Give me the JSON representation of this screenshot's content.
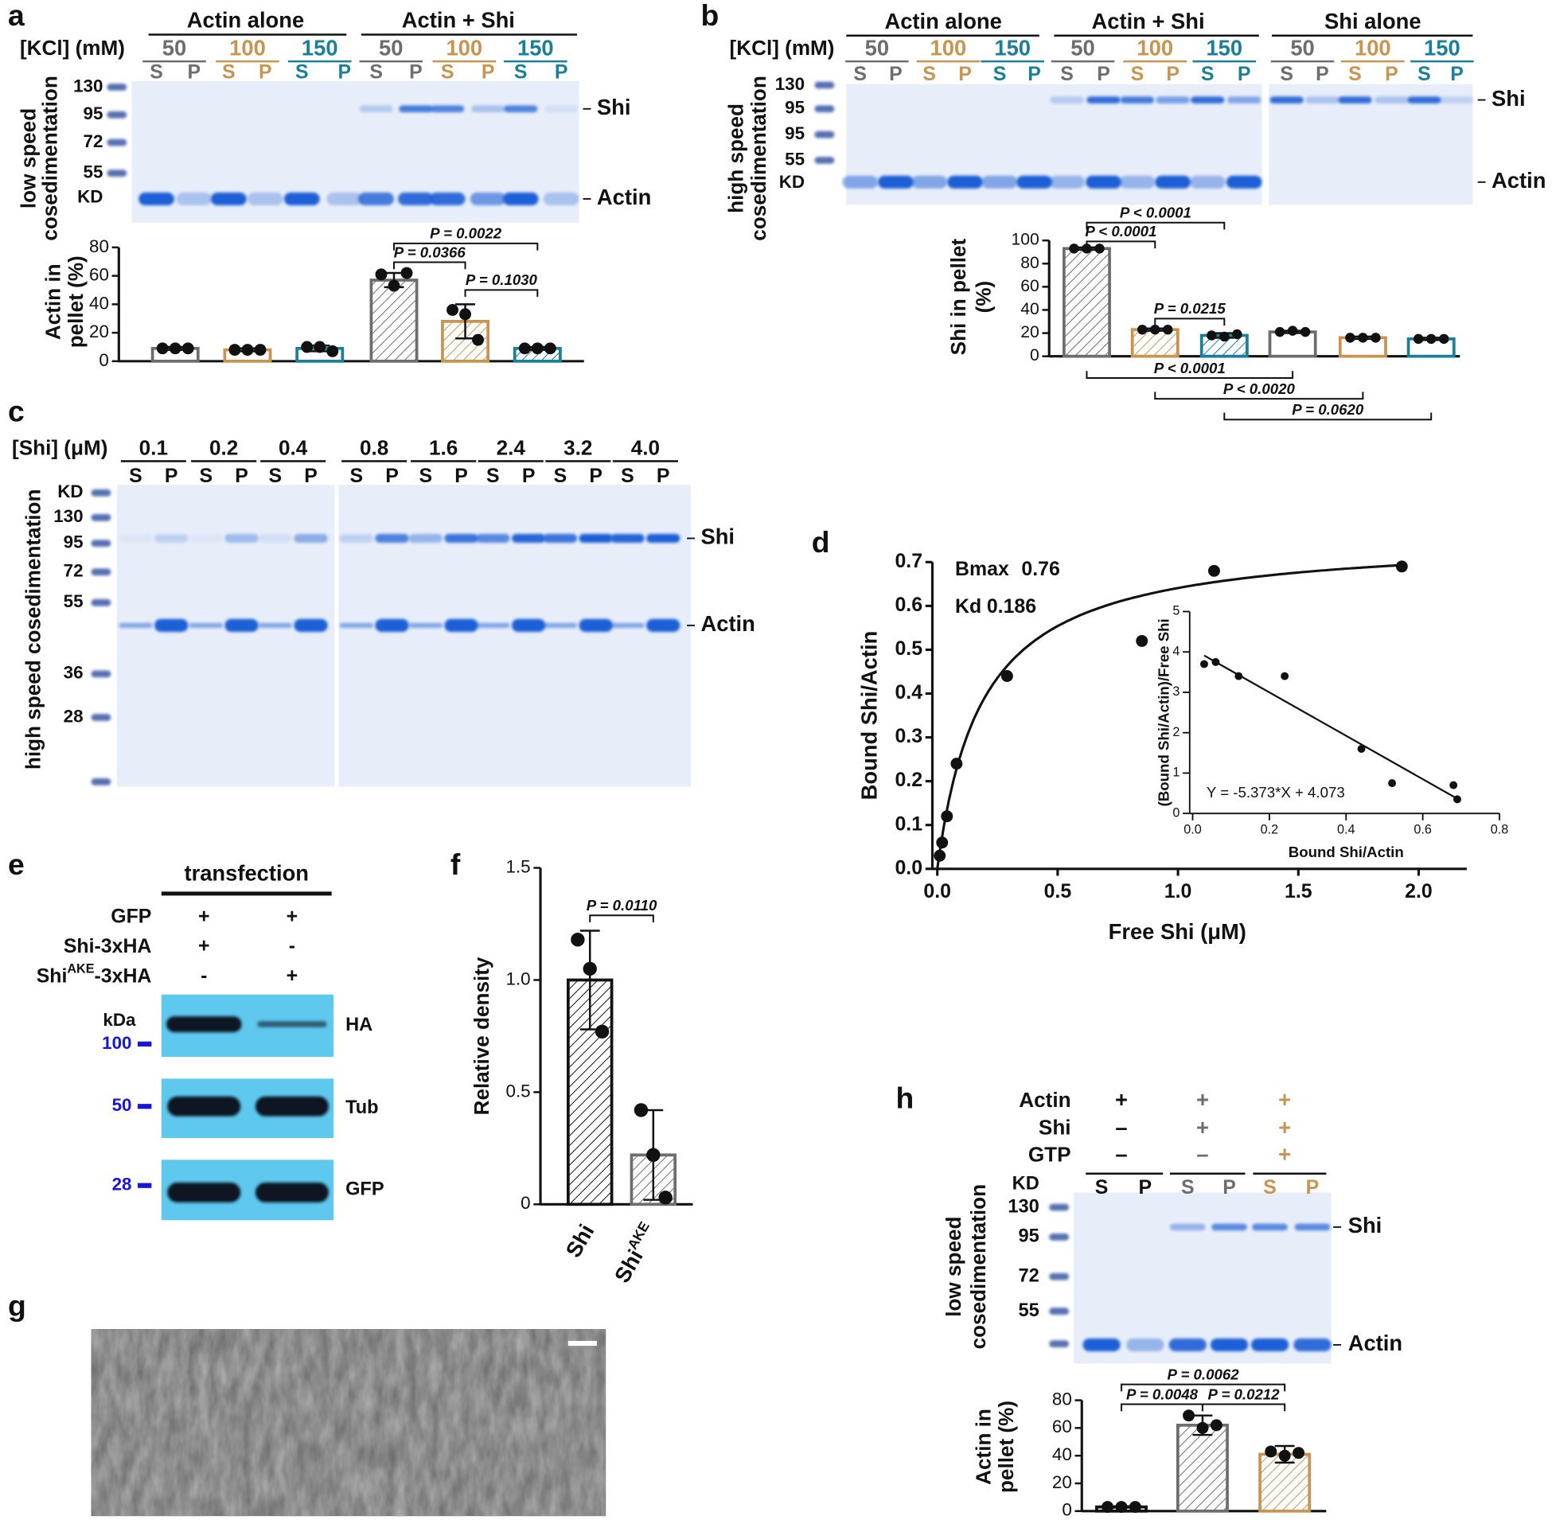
{
  "panel_labels": [
    "a",
    "b",
    "c",
    "d",
    "e",
    "f",
    "g",
    "h"
  ],
  "gels": {
    "a": {
      "groups": [
        "Actin alone",
        "Actin + Shi"
      ],
      "condition_label": "[KCl] (mM)",
      "conditions": [
        "50",
        "100",
        "150",
        "50",
        "100",
        "150"
      ],
      "colors": [
        "#6d6d6d",
        "#c89450",
        "#1a7f99",
        "#6d6d6d",
        "#c89450",
        "#1a7f99"
      ],
      "lanes": [
        "S",
        "P",
        "S",
        "P",
        "S",
        "P",
        "S",
        "P",
        "S",
        "P",
        "S",
        "P"
      ],
      "marker_unit": "KD",
      "markers": [
        "130",
        "95",
        "72",
        "55"
      ],
      "ylabel": [
        "low speed",
        "cosedimentation"
      ],
      "bands": [
        "Shi",
        "Actin"
      ]
    },
    "b": {
      "groups": [
        "Actin alone",
        "Actin + Shi",
        "Shi alone"
      ],
      "condition_label": "[KCl] (mM)",
      "conditions": [
        "50",
        "100",
        "150",
        "50",
        "100",
        "150",
        "50",
        "100",
        "150"
      ],
      "colors": [
        "#6d6d6d",
        "#c89450",
        "#1a7f99",
        "#6d6d6d",
        "#c89450",
        "#1a7f99",
        "#6d6d6d",
        "#c89450",
        "#1a7f99"
      ],
      "lanes": [
        "S",
        "P",
        "S",
        "P",
        "S",
        "P",
        "S",
        "P",
        "S",
        "P",
        "S",
        "P",
        "S",
        "P",
        "S",
        "P",
        "S",
        "P"
      ],
      "marker_unit": "KD",
      "markers": [
        "130",
        "95",
        "95",
        "55"
      ],
      "ylabel": [
        "high speed",
        "cosedimentation"
      ],
      "bands": [
        "Shi",
        "Actin"
      ]
    },
    "c": {
      "condition_label": "[Shi] (μM)",
      "conditions": [
        "0.1",
        "0.2",
        "0.4",
        "0.8",
        "1.6",
        "2.4",
        "3.2",
        "4.0"
      ],
      "lanes": [
        "S",
        "P",
        "S",
        "P",
        "S",
        "P",
        "S",
        "P",
        "S",
        "P",
        "S",
        "P",
        "S",
        "P",
        "S",
        "P"
      ],
      "marker_unit": "KD",
      "markers": [
        "130",
        "95",
        "72",
        "55",
        "36",
        "28"
      ],
      "ylabel": "high speed cosedimentation",
      "bands": [
        "Shi",
        "Actin"
      ]
    },
    "e": {
      "title": "transfection",
      "rows": [
        [
          "GFP"
        ],
        [
          "Shi-3xHA"
        ],
        [
          "Shi",
          "AKE",
          "-3xHA"
        ]
      ],
      "signs": [
        [
          "+",
          "+"
        ],
        [
          "+",
          "-"
        ],
        [
          "-",
          "+"
        ]
      ],
      "marker_unit": "kDa",
      "markers": [
        "100",
        "50",
        "28"
      ],
      "blots": [
        "HA",
        "Tub",
        "GFP"
      ]
    },
    "h": {
      "rows": [
        "Actin",
        "Shi",
        "GTP"
      ],
      "signs": [
        [
          "+",
          "+",
          "+"
        ],
        [
          "–",
          "+",
          "+"
        ],
        [
          "–",
          "–",
          "+"
        ]
      ],
      "colors": [
        "#111111",
        "#6d6d6d",
        "#c89450"
      ],
      "lanes": [
        "S",
        "P",
        "S",
        "P",
        "S",
        "P"
      ],
      "marker_unit": "KD",
      "markers": [
        "130",
        "95",
        "72",
        "55"
      ],
      "ylabel": [
        "low speed",
        "cosedimentation"
      ],
      "bands": [
        "Shi",
        "Actin"
      ]
    }
  },
  "chart_data": [
    {
      "type": "bar",
      "ylabel": [
        "Actin in",
        "pellet (%)"
      ],
      "values": [
        9,
        8,
        9,
        57,
        28,
        9
      ],
      "errors": [
        1,
        1,
        2,
        5,
        12,
        1
      ],
      "points": [
        [
          9,
          9,
          9
        ],
        [
          8,
          8,
          8
        ],
        [
          10,
          10,
          7
        ],
        [
          61,
          53,
          62
        ],
        [
          36,
          33,
          15
        ],
        [
          9,
          9,
          9
        ]
      ],
      "colors": [
        "#6d6d6d",
        "#c89450",
        "#1a7f99",
        "#6d6d6d",
        "#c89450",
        "#1a7f99"
      ],
      "hatched": [
        false,
        false,
        false,
        true,
        true,
        true
      ],
      "ylim": [
        0,
        80
      ],
      "yticks": [
        0,
        20,
        40,
        60,
        80
      ],
      "annotations": [
        "P = 0.0022",
        "P = 0.0366",
        "P = 0.1030"
      ]
    },
    {
      "type": "bar",
      "ylabel": [
        "Shi in pellet",
        "(%)"
      ],
      "values": [
        93,
        23,
        18,
        21,
        16,
        15
      ],
      "errors": [
        1,
        1,
        2,
        1,
        1,
        1
      ],
      "points": [
        [
          93,
          93,
          93
        ],
        [
          23,
          23,
          23
        ],
        [
          18,
          17,
          19
        ],
        [
          21,
          22,
          21
        ],
        [
          16,
          16,
          16
        ],
        [
          15,
          15,
          15
        ]
      ],
      "colors": [
        "#6d6d6d",
        "#c89450",
        "#1a7f99",
        "#6d6d6d",
        "#c89450",
        "#1a7f99"
      ],
      "hatched": [
        true,
        true,
        true,
        false,
        false,
        false
      ],
      "ylim": [
        0,
        100
      ],
      "yticks": [
        0,
        20,
        40,
        60,
        80,
        100
      ],
      "annotations": [
        "P < 0.0001",
        "P < 0.0001",
        "P = 0.0215",
        "P < 0.0001",
        "P < 0.0020",
        "P = 0.0620"
      ]
    },
    {
      "type": "scatter",
      "xlabel": "Free Shi (μM)",
      "ylabel": "Bound Shi/Actin",
      "x": [
        0.01,
        0.02,
        0.04,
        0.08,
        0.29,
        0.85,
        1.15,
        1.93
      ],
      "values": [
        0.03,
        0.06,
        0.12,
        0.24,
        0.44,
        0.52,
        0.68,
        0.69
      ],
      "color": "#111111",
      "xlim": [
        0,
        2.2
      ],
      "xticks": [
        {
          "value": 0,
          "label": "0.0"
        },
        0.5,
        {
          "value": 1,
          "label": "1.0"
        },
        1.5,
        {
          "value": 2,
          "label": "2.0"
        }
      ],
      "ylim": [
        0,
        0.7
      ],
      "yticks": [
        {
          "value": 0,
          "label": "0.0"
        },
        0.1,
        0.2,
        0.3,
        0.4,
        0.5,
        0.6,
        0.7
      ],
      "fit": {
        "bmax_label": "Bmax",
        "bmax": 0.76,
        "kd_label": "Kd",
        "kd": 0.186
      }
    },
    {
      "type": "scatter",
      "xlabel": "Bound Shi/Actin",
      "ylabel": "(Bound Shi/Actin)/Free Shi",
      "x": [
        0.03,
        0.06,
        0.12,
        0.24,
        0.44,
        0.52,
        0.68,
        0.69
      ],
      "values": [
        3.7,
        3.75,
        3.4,
        3.4,
        1.6,
        0.75,
        0.7,
        0.35
      ],
      "color": "#111111",
      "xlim": [
        0,
        0.8
      ],
      "xticks": [
        {
          "value": 0,
          "label": "0.0"
        },
        0.2,
        0.4,
        0.6,
        0.8
      ],
      "ylim": [
        0,
        5
      ],
      "yticks": [
        0,
        1,
        2,
        3,
        4,
        5
      ],
      "fit": {
        "equation": "Y = -5.373*X + 4.073",
        "slope": -5.373,
        "intercept": 4.073
      }
    },
    {
      "type": "bar",
      "ylabel": [
        "Relative density"
      ],
      "categories": [
        "Shi",
        "Shi"
      ],
      "category_superscripts": [
        null,
        "AKE"
      ],
      "values": [
        1.0,
        0.22
      ],
      "errors": [
        0.22,
        0.2
      ],
      "points": [
        [
          1.18,
          1.05,
          0.77
        ],
        [
          0.42,
          0.22,
          0.03
        ]
      ],
      "colors": [
        "#111111",
        "#6d6d6d"
      ],
      "hatched": [
        true,
        true
      ],
      "ylim": [
        0,
        1.5
      ],
      "yticks": [
        0,
        0.5,
        {
          "value": 1,
          "label": "1.0"
        },
        1.5
      ],
      "annotations": [
        "P = 0.0110"
      ]
    },
    {
      "type": "bar",
      "ylabel": [
        "Actin in",
        "pellet (%)"
      ],
      "values": [
        3,
        62,
        41
      ],
      "errors": [
        0.5,
        7,
        6
      ],
      "points": [
        [
          3,
          3,
          3
        ],
        [
          69,
          60,
          62
        ],
        [
          43,
          40,
          42
        ]
      ],
      "colors": [
        "#111111",
        "#6d6d6d",
        "#c89450"
      ],
      "hatched": [
        false,
        true,
        true
      ],
      "ylim": [
        0,
        80
      ],
      "yticks": [
        0,
        20,
        40,
        60,
        80
      ],
      "annotations": [
        "P = 0.0062",
        "P = 0.0048",
        "P = 0.0212"
      ]
    }
  ]
}
